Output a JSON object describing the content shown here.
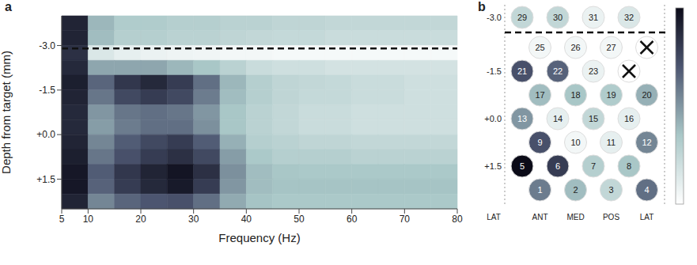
{
  "chart_data": [
    {
      "type": "heatmap",
      "panel_label": "a",
      "x_label": "Frequency (Hz)",
      "y_label": "Depth from target (mm)",
      "xlim": [
        5,
        80
      ],
      "xticks": [
        5,
        10,
        20,
        30,
        40,
        50,
        60,
        70,
        80
      ],
      "ylim": [
        -4.0,
        2.5
      ],
      "yticks": [
        {
          "value": -3.0,
          "label": "-3.0"
        },
        {
          "value": -1.5,
          "label": "-1.5"
        },
        {
          "value": 0.0,
          "label": "+0.0"
        },
        {
          "value": 1.5,
          "label": "+1.5"
        }
      ],
      "reference_line": {
        "y": -2.9,
        "line_style": "dashed"
      },
      "heatmap": {
        "x_edges": [
          5,
          10,
          15,
          20,
          25,
          30,
          35,
          40,
          45,
          50,
          55,
          60,
          65,
          70,
          75,
          80
        ],
        "y_edges": [
          -4.0,
          -3.5,
          -3.0,
          -2.5,
          -2.0,
          -1.5,
          -1.0,
          -0.5,
          0.0,
          0.5,
          1.0,
          1.5,
          2.0,
          2.5
        ],
        "cells": [
          [
            0.9,
            0.4,
            0.32,
            0.32,
            0.3,
            0.3,
            0.28,
            0.28,
            0.26,
            0.26,
            0.25,
            0.25,
            0.25,
            0.25,
            0.25
          ],
          [
            0.9,
            0.38,
            0.3,
            0.3,
            0.28,
            0.28,
            0.26,
            0.25,
            0.24,
            0.24,
            0.22,
            0.22,
            0.22,
            0.22,
            0.22
          ],
          [
            0.85,
            0.15,
            0.1,
            0.08,
            0.07,
            0.06,
            0.05,
            0.05,
            0.04,
            0.04,
            0.04,
            0.04,
            0.04,
            0.04,
            0.04
          ],
          [
            0.88,
            0.45,
            0.45,
            0.45,
            0.4,
            0.35,
            0.28,
            0.22,
            0.2,
            0.2,
            0.18,
            0.18,
            0.18,
            0.18,
            0.18
          ],
          [
            0.92,
            0.65,
            0.82,
            0.88,
            0.8,
            0.62,
            0.4,
            0.3,
            0.26,
            0.25,
            0.24,
            0.22,
            0.22,
            0.2,
            0.2
          ],
          [
            0.9,
            0.6,
            0.75,
            0.8,
            0.75,
            0.58,
            0.38,
            0.3,
            0.26,
            0.24,
            0.24,
            0.22,
            0.22,
            0.2,
            0.2
          ],
          [
            0.88,
            0.5,
            0.6,
            0.62,
            0.6,
            0.5,
            0.35,
            0.28,
            0.25,
            0.22,
            0.22,
            0.2,
            0.2,
            0.2,
            0.2
          ],
          [
            0.88,
            0.48,
            0.58,
            0.62,
            0.62,
            0.52,
            0.35,
            0.28,
            0.25,
            0.22,
            0.22,
            0.2,
            0.2,
            0.2,
            0.2
          ],
          [
            0.9,
            0.55,
            0.68,
            0.75,
            0.8,
            0.68,
            0.42,
            0.3,
            0.28,
            0.26,
            0.26,
            0.25,
            0.25,
            0.25,
            0.25
          ],
          [
            0.92,
            0.6,
            0.72,
            0.8,
            0.85,
            0.75,
            0.48,
            0.34,
            0.3,
            0.3,
            0.3,
            0.28,
            0.28,
            0.28,
            0.28
          ],
          [
            0.95,
            0.68,
            0.82,
            0.9,
            0.96,
            0.85,
            0.52,
            0.38,
            0.35,
            0.34,
            0.34,
            0.34,
            0.34,
            0.34,
            0.34
          ],
          [
            0.95,
            0.66,
            0.8,
            0.88,
            0.94,
            0.8,
            0.5,
            0.38,
            0.36,
            0.36,
            0.36,
            0.36,
            0.36,
            0.36,
            0.36
          ],
          [
            0.9,
            0.55,
            0.65,
            0.7,
            0.72,
            0.62,
            0.44,
            0.36,
            0.34,
            0.34,
            0.34,
            0.34,
            0.34,
            0.34,
            0.34
          ]
        ]
      },
      "colorbar": {
        "range": [
          0,
          1
        ]
      }
    },
    {
      "type": "electrode_map",
      "panel_label": "b",
      "row_labels": [
        "-3.0",
        null,
        "-1.5",
        null,
        "+0.0",
        null,
        "+1.5",
        null
      ],
      "column_labels": [
        "LAT",
        "ANT",
        "MED",
        "POS",
        "LAT"
      ],
      "rows": [
        [
          {
            "label": 29,
            "value": 0.25
          },
          {
            "label": 30,
            "value": 0.25
          },
          {
            "label": 31,
            "value": 0.08
          },
          {
            "label": 32,
            "value": 0.15
          }
        ],
        [
          {
            "label": 25,
            "value": 0.05
          },
          {
            "label": 26,
            "value": 0.05
          },
          {
            "label": 27,
            "value": 0.05
          },
          {
            "label": null,
            "value": null,
            "marker": "x"
          }
        ],
        [
          {
            "label": 21,
            "value": 0.72
          },
          {
            "label": 22,
            "value": 0.66
          },
          {
            "label": 23,
            "value": 0.08
          },
          {
            "label": null,
            "value": null,
            "marker": "x"
          }
        ],
        [
          {
            "label": 17,
            "value": 0.38
          },
          {
            "label": 18,
            "value": 0.35
          },
          {
            "label": 19,
            "value": 0.32
          },
          {
            "label": 20,
            "value": 0.42
          }
        ],
        [
          {
            "label": 13,
            "value": 0.5
          },
          {
            "label": 14,
            "value": 0.1
          },
          {
            "label": 15,
            "value": 0.25
          },
          {
            "label": 16,
            "value": 0.1
          }
        ],
        [
          {
            "label": 9,
            "value": 0.72
          },
          {
            "label": 10,
            "value": 0.05
          },
          {
            "label": 11,
            "value": 0.1
          },
          {
            "label": 12,
            "value": 0.55
          }
        ],
        [
          {
            "label": 5,
            "value": 1.0
          },
          {
            "label": 6,
            "value": 0.8
          },
          {
            "label": 7,
            "value": 0.3
          },
          {
            "label": 8,
            "value": 0.35
          }
        ],
        [
          {
            "label": 1,
            "value": 0.58
          },
          {
            "label": 2,
            "value": 0.38
          },
          {
            "label": 3,
            "value": 0.25
          },
          {
            "label": 4,
            "value": 0.62
          }
        ]
      ],
      "colorbar": {
        "range": [
          0,
          1
        ]
      }
    }
  ]
}
